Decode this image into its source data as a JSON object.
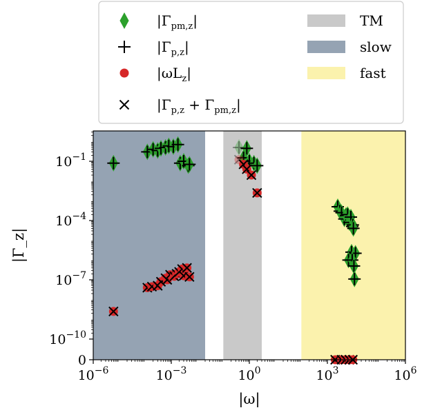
{
  "chart_data": {
    "type": "scatter",
    "x_scale": "log",
    "y_scale": "symlog",
    "xlim": [
      1e-06,
      1000000.0
    ],
    "xlabel": "|ω|",
    "ylabel": "|Γ_z|",
    "x_ticks": [
      {
        "base": "10",
        "exp": "−6",
        "value": 1e-06
      },
      {
        "base": "10",
        "exp": "−3",
        "value": 0.001
      },
      {
        "base": "10",
        "exp": "0",
        "value": 1
      },
      {
        "base": "10",
        "exp": "3",
        "value": 1000.0
      },
      {
        "base": "10",
        "exp": "6",
        "value": 1000000.0
      }
    ],
    "y_ticks": [
      {
        "base": "0",
        "exp": "",
        "value": 0
      },
      {
        "base": "10",
        "exp": "−10",
        "value": 1e-10
      },
      {
        "base": "10",
        "exp": "−7",
        "value": 1e-07
      },
      {
        "base": "10",
        "exp": "−4",
        "value": 0.0001
      },
      {
        "base": "10",
        "exp": "−1",
        "value": 0.1
      }
    ],
    "regions": [
      {
        "name": "slow",
        "x_range": [
          1e-06,
          0.02
        ],
        "color": "#95a3b3"
      },
      {
        "name": "TM",
        "x_range": [
          0.1,
          3
        ],
        "color": "#c9c9c9"
      },
      {
        "name": "fast",
        "x_range": [
          100,
          1000000.0
        ],
        "color": "#fbf2ad"
      }
    ],
    "legend": {
      "placement": "above plot",
      "series": [
        {
          "key": "pm",
          "label_main": "|Γ",
          "label_sub": "pm,z",
          "label_end": "|",
          "marker": "thin_diamond",
          "color": "#2ca02c"
        },
        {
          "key": "p",
          "label_main": "|Γ",
          "label_sub": "p,z",
          "label_end": "|",
          "marker": "plus",
          "color": "#000000"
        },
        {
          "key": "wl",
          "label_main": "|ωL",
          "label_sub": "z",
          "label_end": "|",
          "marker": "circle",
          "color": "#d62728"
        },
        {
          "key": "sum",
          "label_main": "|Γ",
          "label_sub": "p,z",
          "label_mid": " + Γ",
          "label_sub2": "pm,z",
          "label_end": "|",
          "marker": "x",
          "color": "#000000"
        }
      ],
      "regions": [
        {
          "label": "TM",
          "color": "#c9c9c9"
        },
        {
          "label": "slow",
          "color": "#95a3b3"
        },
        {
          "label": "fast",
          "color": "#fbf2ad"
        }
      ]
    },
    "points_upper": [
      {
        "x": 6e-06,
        "y": 0.08
      },
      {
        "x": 0.00012,
        "y": 0.3
      },
      {
        "x": 0.0002,
        "y": 0.4
      },
      {
        "x": 0.0003,
        "y": 0.35
      },
      {
        "x": 0.0004,
        "y": 0.45
      },
      {
        "x": 0.0006,
        "y": 0.5
      },
      {
        "x": 0.0008,
        "y": 0.6
      },
      {
        "x": 0.0012,
        "y": 0.55
      },
      {
        "x": 0.0018,
        "y": 0.7
      },
      {
        "x": 0.0022,
        "y": 0.08
      },
      {
        "x": 0.003,
        "y": 0.1
      },
      {
        "x": 0.0045,
        "y": 0.06
      },
      {
        "x": 0.005,
        "y": 0.07
      },
      {
        "x": 0.4,
        "y": 0.5,
        "faded": true
      },
      {
        "x": 0.8,
        "y": 0.45
      },
      {
        "x": 0.6,
        "y": 0.15
      },
      {
        "x": 1.0,
        "y": 0.1
      },
      {
        "x": 1.5,
        "y": 0.08
      },
      {
        "x": 2.0,
        "y": 0.06
      },
      {
        "x": 2500,
        "y": 0.0005
      },
      {
        "x": 3000,
        "y": 0.0003
      },
      {
        "x": 3500,
        "y": 0.00025
      },
      {
        "x": 4500,
        "y": 0.00012
      },
      {
        "x": 5200,
        "y": 0.00018
      },
      {
        "x": 6000,
        "y": 0.0002
      },
      {
        "x": 7000,
        "y": 8e-05
      },
      {
        "x": 8000,
        "y": 0.00015
      },
      {
        "x": 9000,
        "y": 5e-05
      },
      {
        "x": 9500,
        "y": 6e-05
      },
      {
        "x": 10000,
        "y": 4e-05
      },
      {
        "x": 8500,
        "y": 2.5e-06
      },
      {
        "x": 12000,
        "y": 2.2e-06
      },
      {
        "x": 6500,
        "y": 1e-06
      },
      {
        "x": 9000,
        "y": 1e-06
      },
      {
        "x": 10500,
        "y": 5e-07
      },
      {
        "x": 11000,
        "y": 1.1e-07
      }
    ],
    "points_red": [
      {
        "x": 0.4,
        "y": 0.12,
        "faded": true
      },
      {
        "x": 0.6,
        "y": 0.07
      },
      {
        "x": 0.8,
        "y": 0.04
      },
      {
        "x": 1.2,
        "y": 0.02
      },
      {
        "x": 2.0,
        "y": 0.0025
      }
    ],
    "points_lower": [
      {
        "x": 6e-06,
        "y": 2.5e-09
      },
      {
        "x": 0.00012,
        "y": 4e-08
      },
      {
        "x": 0.00018,
        "y": 4.5e-08
      },
      {
        "x": 0.0003,
        "y": 5e-08
      },
      {
        "x": 0.0004,
        "y": 8e-08
      },
      {
        "x": 0.0006,
        "y": 1.2e-07
      },
      {
        "x": 0.0007,
        "y": 1e-07
      },
      {
        "x": 0.0009,
        "y": 1.8e-07
      },
      {
        "x": 0.0013,
        "y": 1.5e-07
      },
      {
        "x": 0.0016,
        "y": 2e-07
      },
      {
        "x": 0.002,
        "y": 2.5e-07
      },
      {
        "x": 0.0026,
        "y": 3.5e-07
      },
      {
        "x": 0.003,
        "y": 1.6e-07
      },
      {
        "x": 0.004,
        "y": 4e-07
      },
      {
        "x": 0.005,
        "y": 1.4e-07
      }
    ],
    "points_zero": [
      {
        "x": 2000,
        "y": 0
      },
      {
        "x": 3500,
        "y": 0
      },
      {
        "x": 5000,
        "y": 0
      },
      {
        "x": 7000,
        "y": 0
      },
      {
        "x": 9500,
        "y": 0
      }
    ]
  }
}
